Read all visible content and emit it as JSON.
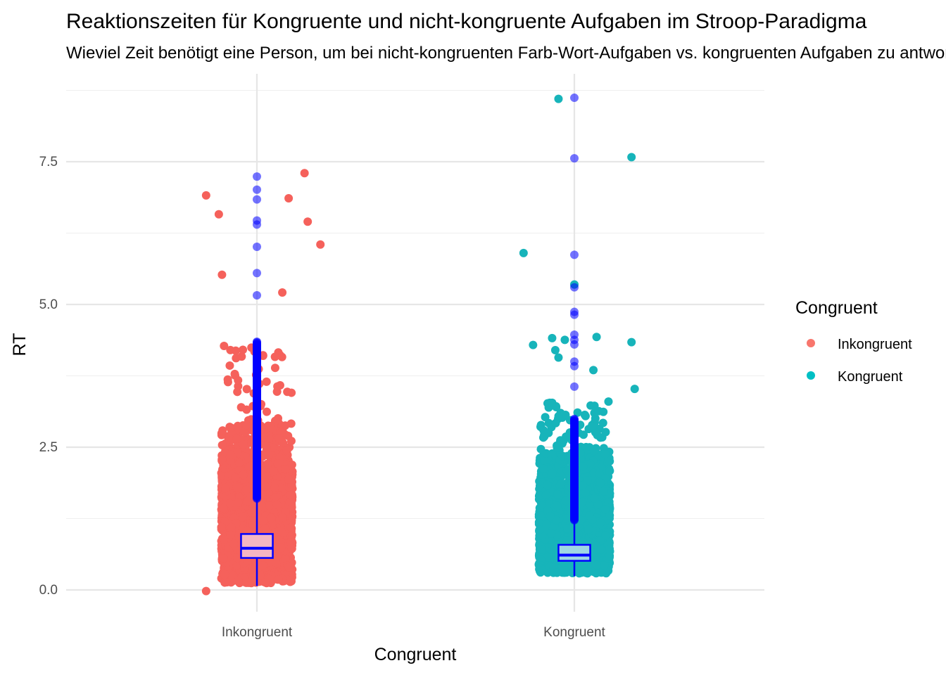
{
  "chart_data": {
    "type": "box+jitter",
    "title": "Reaktionszeiten für Kongruente und nicht-kongruente Aufgaben im Stroop-Paradigma",
    "subtitle": "Wieviel Zeit benötigt eine Person, um bei nicht-kongruenten Farb-Wort-Aufgaben vs. kongruenten Aufgaben zu antworten?",
    "xlabel": "Congruent",
    "ylabel": "RT",
    "categories": [
      "Inkongruent",
      "Kongruent"
    ],
    "ylim": [
      -0.3,
      8.9
    ],
    "y_ticks": [
      0.0,
      2.5,
      5.0,
      7.5
    ],
    "y_tick_labels": [
      "0.0",
      "2.5",
      "5.0",
      "7.5"
    ],
    "grid": true,
    "legend": {
      "title": "Congruent",
      "position": "right",
      "entries": [
        {
          "label": "Inkongruent",
          "color": "#F8766D"
        },
        {
          "label": "Kongruent",
          "color": "#00BFC4"
        }
      ]
    },
    "colors": {
      "Inkongruent": "#F5615B",
      "Kongruent": "#17B4BA",
      "box_stroke": "#0000FF",
      "box_fill_Inkongruent": "#F4B6C2",
      "box_fill_Kongruent": "#9FD6E3",
      "outlier": "#0000FF"
    },
    "boxplots": [
      {
        "category": "Inkongruent",
        "min": 0.07,
        "q1": 0.56,
        "median": 0.73,
        "q3": 0.98,
        "whisker_high": 1.6,
        "outliers": [
          5.16,
          5.55,
          6.01,
          6.4,
          6.47,
          6.84,
          7.01,
          7.24
        ]
      },
      {
        "category": "Kongruent",
        "min": 0.24,
        "q1": 0.51,
        "median": 0.61,
        "q3": 0.79,
        "whisker_high": 1.22,
        "outliers": [
          3.56,
          3.92,
          4.0,
          4.3,
          4.38,
          4.47,
          4.82,
          4.87,
          5.3,
          5.87,
          7.56,
          8.62
        ]
      }
    ],
    "jitter_extremes": [
      {
        "category": "Inkongruent",
        "offset": -0.16,
        "y": 6.91
      },
      {
        "category": "Inkongruent",
        "offset": 0.15,
        "y": 7.3
      },
      {
        "category": "Inkongruent",
        "offset": -0.12,
        "y": 6.58
      },
      {
        "category": "Inkongruent",
        "offset": 0.1,
        "y": 6.86
      },
      {
        "category": "Inkongruent",
        "offset": 0.16,
        "y": 6.45
      },
      {
        "category": "Inkongruent",
        "offset": 0.2,
        "y": 6.05
      },
      {
        "category": "Inkongruent",
        "offset": -0.11,
        "y": 5.52
      },
      {
        "category": "Inkongruent",
        "offset": 0.08,
        "y": 5.21
      },
      {
        "category": "Inkongruent",
        "offset": -0.16,
        "y": -0.02
      },
      {
        "category": "Kongruent",
        "offset": -0.05,
        "y": 8.6
      },
      {
        "category": "Kongruent",
        "offset": 0.18,
        "y": 7.58
      },
      {
        "category": "Kongruent",
        "offset": -0.16,
        "y": 5.9
      },
      {
        "category": "Kongruent",
        "offset": 0.0,
        "y": 5.35
      },
      {
        "category": "Kongruent",
        "offset": 0.18,
        "y": 4.34
      },
      {
        "category": "Kongruent",
        "offset": 0.07,
        "y": 4.43
      },
      {
        "category": "Kongruent",
        "offset": -0.07,
        "y": 4.41
      },
      {
        "category": "Kongruent",
        "offset": -0.03,
        "y": 4.38
      },
      {
        "category": "Kongruent",
        "offset": -0.13,
        "y": 4.29
      },
      {
        "category": "Kongruent",
        "offset": -0.06,
        "y": 4.2
      },
      {
        "category": "Kongruent",
        "offset": -0.05,
        "y": 4.07
      },
      {
        "category": "Kongruent",
        "offset": 0.06,
        "y": 3.85
      },
      {
        "category": "Kongruent",
        "offset": 0.19,
        "y": 3.52
      }
    ]
  }
}
